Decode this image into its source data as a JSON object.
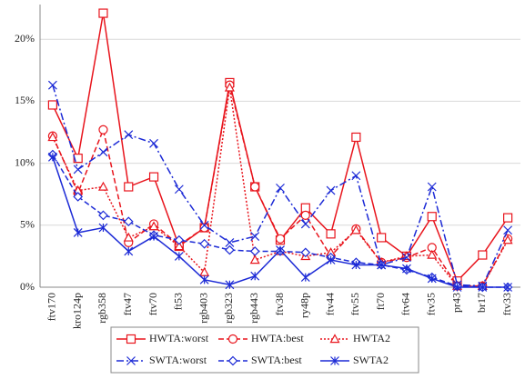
{
  "chart_data": {
    "type": "line",
    "categories": [
      "ftv170",
      "kro124p",
      "rgb358",
      "ftv47",
      "ftv70",
      "ft53",
      "rgb403",
      "rgb323",
      "rgb443",
      "ftv38",
      "ry48p",
      "ftv44",
      "ftv55",
      "ft70",
      "ftv64",
      "ftv35",
      "pr43",
      "br17",
      "ftv33"
    ],
    "series": [
      {
        "name": "HWTA:worst",
        "color": "#e8141c",
        "dash": "solid",
        "marker": "square",
        "values": [
          14.7,
          10.4,
          22.1,
          8.1,
          8.9,
          3.3,
          4.8,
          16.5,
          8.1,
          3.8,
          6.4,
          4.3,
          12.1,
          4.0,
          2.5,
          5.7,
          0.5,
          2.6,
          5.6
        ]
      },
      {
        "name": "HWTA:best",
        "color": "#e8141c",
        "dash": "dashed",
        "marker": "circle",
        "values": [
          12.2,
          7.6,
          12.7,
          3.6,
          5.1,
          3.4,
          4.8,
          16.3,
          8.1,
          3.9,
          5.8,
          2.5,
          4.7,
          2.0,
          2.4,
          3.2,
          0.1,
          0.1,
          3.9
        ]
      },
      {
        "name": "HWTA2",
        "color": "#e8141c",
        "dash": "dotted",
        "marker": "triangle",
        "values": [
          12.1,
          7.8,
          8.1,
          4.0,
          4.9,
          3.3,
          1.2,
          16.1,
          2.2,
          2.9,
          2.5,
          2.8,
          4.6,
          2.0,
          2.5,
          2.6,
          0.1,
          0.1,
          3.8
        ]
      },
      {
        "name": "SWTA:worst",
        "color": "#1c2ad6",
        "dash": "dashdot",
        "marker": "x",
        "values": [
          16.3,
          9.5,
          10.9,
          12.3,
          11.6,
          7.9,
          5.0,
          3.6,
          4.1,
          8.0,
          5.1,
          7.8,
          9.0,
          1.8,
          2.4,
          8.1,
          0.2,
          0.1,
          4.6
        ]
      },
      {
        "name": "SWTA:best",
        "color": "#1c2ad6",
        "dash": "dashed",
        "marker": "diamond",
        "values": [
          10.7,
          7.3,
          5.8,
          5.3,
          4.2,
          3.8,
          3.5,
          3.0,
          2.9,
          2.9,
          2.8,
          2.4,
          2.0,
          1.8,
          1.4,
          0.8,
          0.1,
          0.0,
          0.0
        ]
      },
      {
        "name": "SWTA2",
        "color": "#1c2ad6",
        "dash": "solid",
        "marker": "star",
        "values": [
          10.5,
          4.4,
          4.8,
          2.9,
          4.1,
          2.5,
          0.6,
          0.2,
          0.9,
          3.0,
          0.8,
          2.2,
          1.8,
          1.8,
          1.5,
          0.7,
          0.0,
          0.0,
          0.0
        ]
      }
    ],
    "ylim": [
      0,
      22.8
    ],
    "yticks": [
      {
        "value": 0,
        "label": "0%"
      },
      {
        "value": 5,
        "label": "5%"
      },
      {
        "value": 10,
        "label": "10%"
      },
      {
        "value": 15,
        "label": "15%"
      },
      {
        "value": 20,
        "label": "20%"
      }
    ],
    "grid": true,
    "legend": "bottom"
  }
}
